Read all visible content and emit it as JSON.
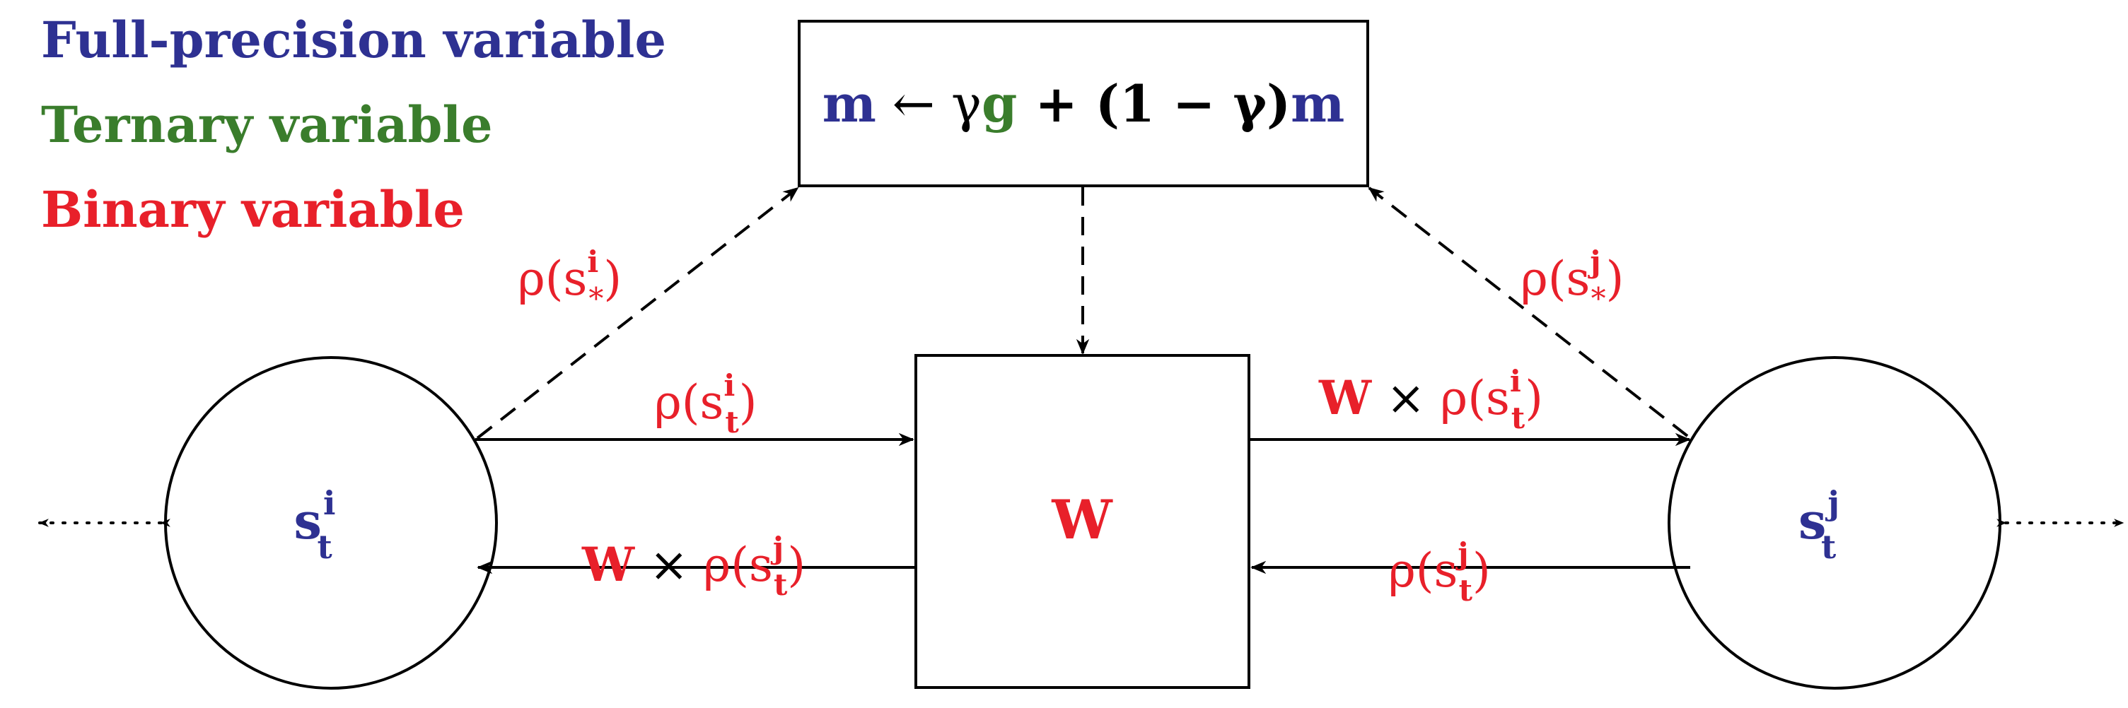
{
  "legend": {
    "full_precision": "Full-precision variable",
    "ternary": "Ternary variable",
    "binary": "Binary variable"
  },
  "colors": {
    "full_precision": "#2e3192",
    "ternary": "#3a7d2c",
    "binary": "#e8202a",
    "stroke": "#000000"
  },
  "update_rule": {
    "m_left": "m",
    "arrow": " ← γ",
    "g": "g",
    "rest": " + (1 − γ)",
    "m_right": "m"
  },
  "weight": {
    "label": "W"
  },
  "node_i": {
    "base": "s",
    "sup": "i",
    "sub": "t"
  },
  "node_j": {
    "base": "s",
    "sup": "j",
    "sub": "t"
  },
  "edges": {
    "rho_star_i": {
      "pre": "ρ(s",
      "sup": "i",
      "sub": "*",
      "post": ")"
    },
    "rho_star_j": {
      "pre": "ρ(s",
      "sup": "j",
      "sub": "*",
      "post": ")"
    },
    "rho_t_i_top": {
      "pre": "ρ(s",
      "sup": "i",
      "sub": "t",
      "post": ")"
    },
    "w_rho_t_i": {
      "w": "W",
      "times": " × ",
      "pre": "ρ(s",
      "sup": "i",
      "sub": "t",
      "post": ")"
    },
    "w_rho_t_j": {
      "w": "W",
      "times": " × ",
      "pre": "ρ(s",
      "sup": "j",
      "sub": "t",
      "post": ")"
    },
    "rho_t_j_bottom": {
      "pre": "ρ(s",
      "sup": "j",
      "sub": "t",
      "post": ")"
    }
  }
}
